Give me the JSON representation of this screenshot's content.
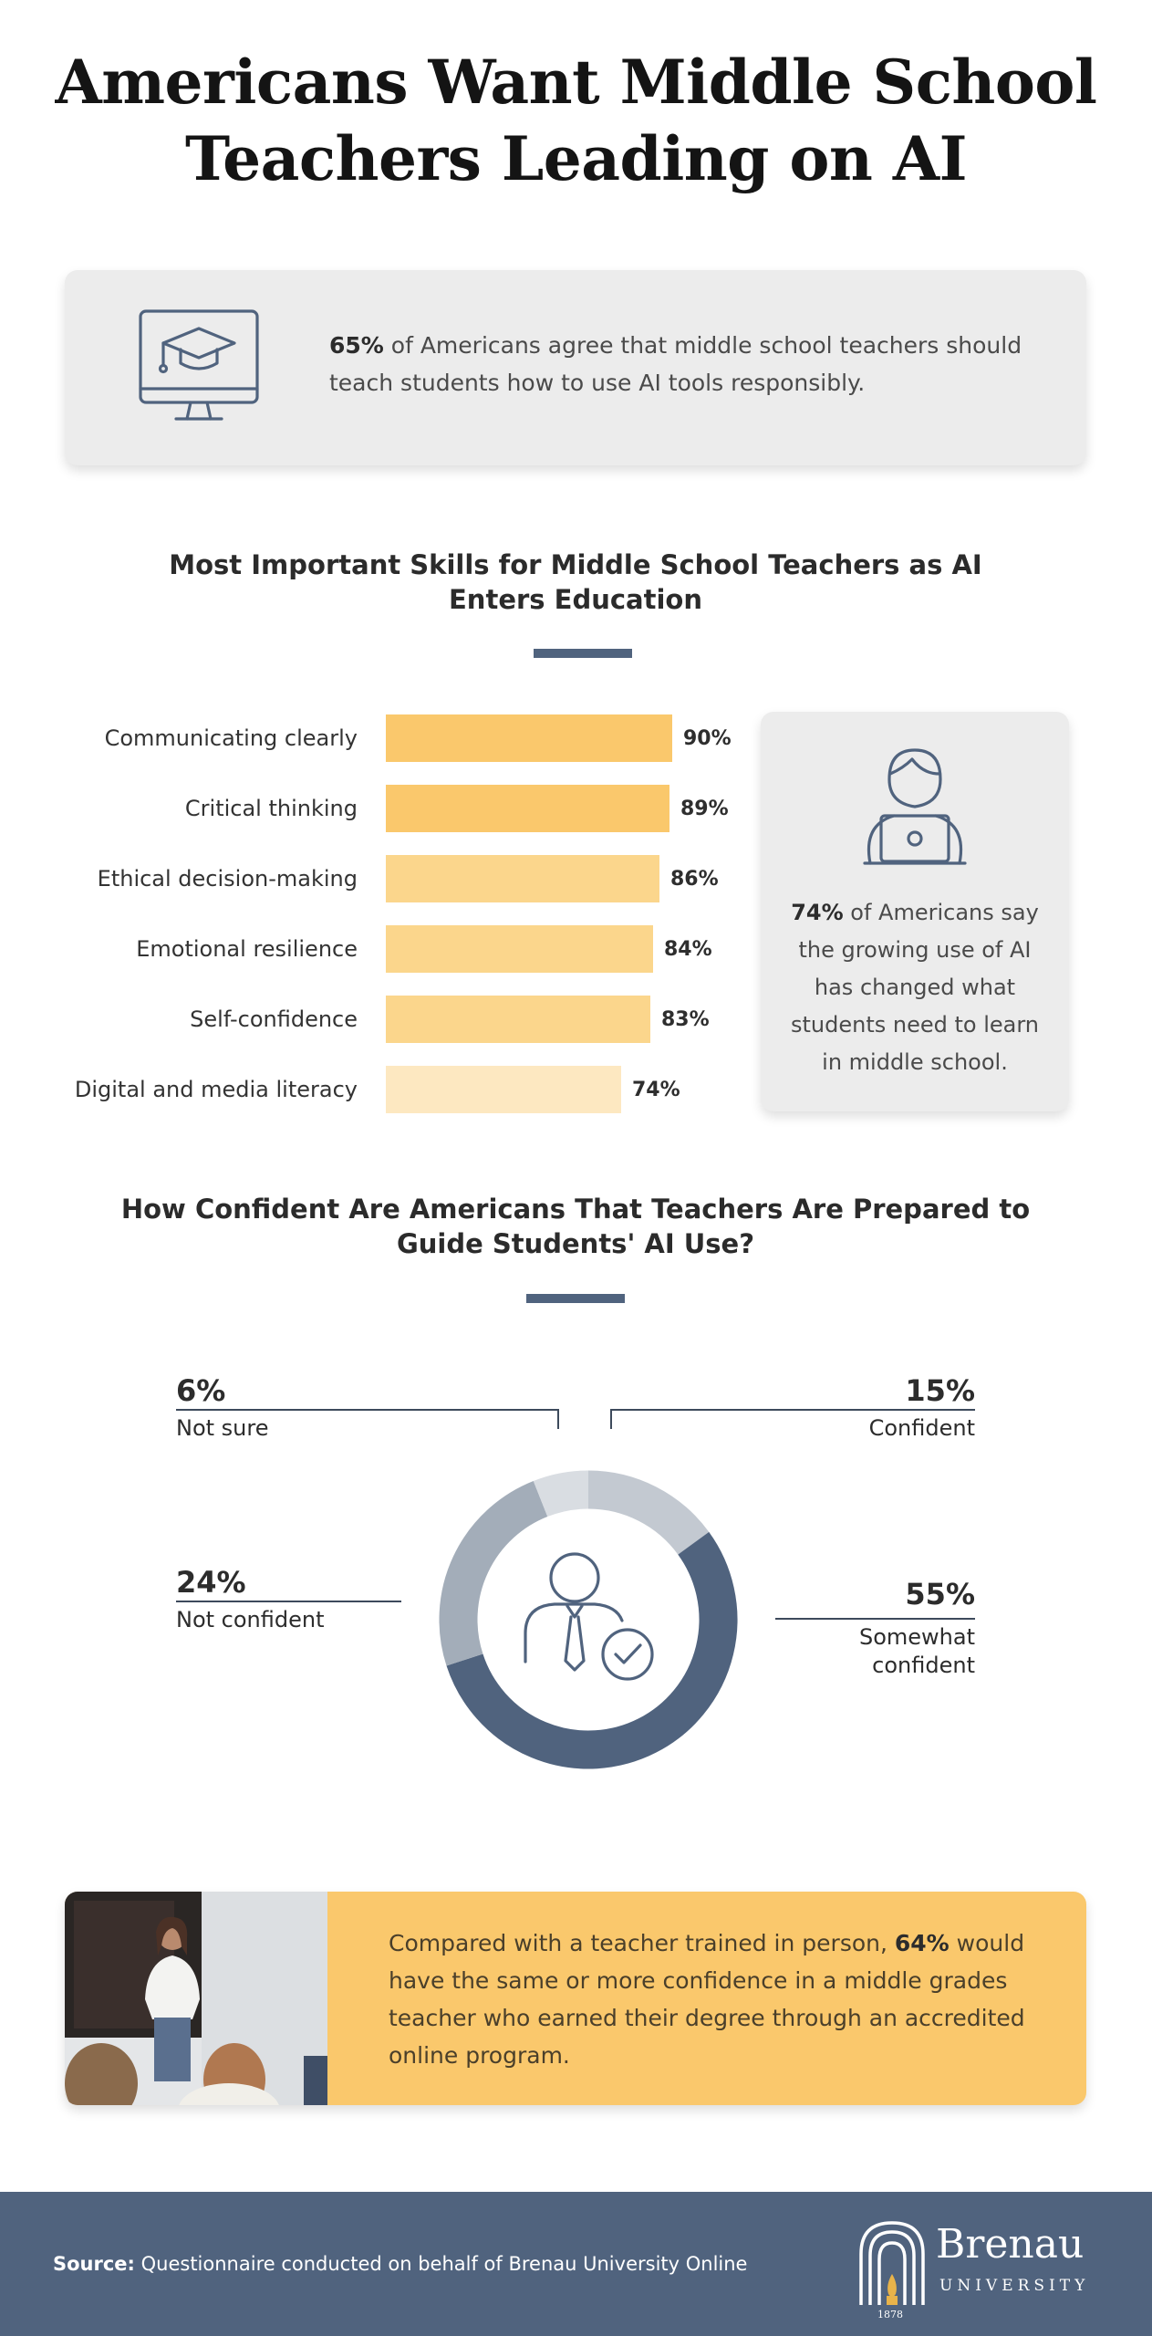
{
  "title": {
    "line1": "Americans Want Middle School",
    "line2": "Teachers Leading on AI"
  },
  "stat_card_1": {
    "icon": "graduation-cap-monitor-icon",
    "highlight": "65%",
    "text": " of Americans agree that middle school teachers should teach students how to use AI tools responsibly."
  },
  "skills_section": {
    "title_line1": "Most Important Skills for Middle School Teachers as AI",
    "title_line2": "Enters Education"
  },
  "stat_card_2": {
    "icon": "person-with-laptop-icon",
    "highlight": "74%",
    "text": " of Americans say the growing use of AI has changed what students need to learn in middle school."
  },
  "confidence_section": {
    "title_line1": "How Confident Are Americans That Teachers Are Prepared to",
    "title_line2": "Guide Students' AI Use?",
    "center_icon": "person-checkmark-icon"
  },
  "callout": {
    "photo": "teacher-classroom-photo",
    "text_before": "Compared with a teacher trained in person, ",
    "highlight": "64%",
    "text_after": " would have the same or more confidence in a middle grades teacher who earned their degree through an accredited online program."
  },
  "footer": {
    "source_label": "Source:",
    "source_text": " Questionnaire conducted on behalf of Brenau University Online",
    "logo_name": "Brenau",
    "logo_sub": "UNIVERSITY",
    "logo_year": "1878"
  },
  "colors": {
    "accent_navy": "#50637e",
    "bar_dark": "#fac86c",
    "bar_mid": "#fbd68c",
    "bar_light": "#fde8c1",
    "donut_confident": "#c3c9d1",
    "donut_somewhat": "#50637e",
    "donut_not_confident": "#a3adb9",
    "donut_not_sure": "#d9dde2",
    "card_bg": "#ececec",
    "callout_bg": "#fac86c"
  },
  "chart_data": [
    {
      "type": "bar",
      "orientation": "horizontal",
      "title": "Most Important Skills for Middle School Teachers as AI Enters Education",
      "categories": [
        "Communicating clearly",
        "Critical thinking",
        "Ethical decision-making",
        "Emotional resilience",
        "Self-confidence",
        "Digital and media literacy"
      ],
      "values": [
        90,
        89,
        86,
        84,
        83,
        74
      ],
      "value_labels": [
        "90%",
        "89%",
        "86%",
        "84%",
        "83%",
        "74%"
      ],
      "bar_colors": [
        "#fac86c",
        "#fac86c",
        "#fbd68c",
        "#fbd68c",
        "#fbd68c",
        "#fde8c1"
      ],
      "xlim": [
        0,
        90
      ],
      "grid": false
    },
    {
      "type": "pie",
      "variant": "donut",
      "title": "How Confident Are Americans That Teachers Are Prepared to Guide Students' AI Use?",
      "categories": [
        "Confident",
        "Somewhat confident",
        "Not confident",
        "Not sure"
      ],
      "values": [
        15,
        55,
        24,
        6
      ],
      "value_labels": [
        "15%",
        "55%",
        "24%",
        "6%"
      ],
      "colors": [
        "#c3c9d1",
        "#50637e",
        "#a3adb9",
        "#d9dde2"
      ]
    }
  ]
}
